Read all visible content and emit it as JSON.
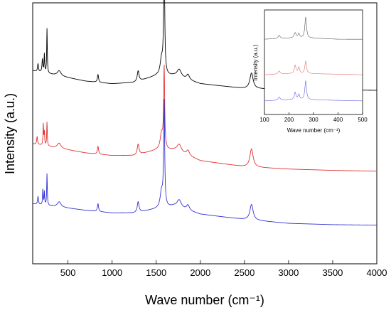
{
  "chart_data": [
    {
      "type": "line",
      "xlabel": "Wave number (cm⁻¹)",
      "ylabel": "Intensity (a.u.)",
      "xlim": [
        100,
        4000
      ],
      "ylim": [
        0,
        1
      ],
      "x_ticks": [
        500,
        1000,
        1500,
        2000,
        2500,
        3000,
        3500,
        4000
      ],
      "y_ticks_shown": false,
      "grid": false,
      "legend": "none",
      "series": [
        {
          "color": "#000000",
          "baseline": [
            [
              100,
              0.74
            ],
            [
              700,
              0.7
            ],
            [
              1000,
              0.69
            ],
            [
              1250,
              0.695
            ],
            [
              1500,
              0.72
            ],
            [
              1700,
              0.72
            ],
            [
              2000,
              0.69
            ],
            [
              2500,
              0.672
            ],
            [
              3000,
              0.668
            ],
            [
              3500,
              0.666
            ],
            [
              4000,
              0.665
            ]
          ],
          "peaks": [
            {
              "x": 160,
              "h": 0.03,
              "w": 6
            },
            {
              "x": 210,
              "h": 0.05,
              "w": 6
            },
            {
              "x": 232,
              "h": 0.07,
              "w": 4
            },
            {
              "x": 262,
              "h": 0.17,
              "w": 4
            },
            {
              "x": 400,
              "h": 0.02,
              "w": 25
            },
            {
              "x": 840,
              "h": 0.03,
              "w": 8
            },
            {
              "x": 1295,
              "h": 0.04,
              "w": 12
            },
            {
              "x": 1560,
              "h": 0.06,
              "w": 18
            },
            {
              "x": 1590,
              "h": 0.47,
              "w": 7
            },
            {
              "x": 1760,
              "h": 0.03,
              "w": 30
            },
            {
              "x": 1860,
              "h": 0.02,
              "w": 20
            },
            {
              "x": 2580,
              "h": 0.06,
              "w": 22
            }
          ]
        },
        {
          "color": "#e03030",
          "baseline": [
            [
              100,
              0.46
            ],
            [
              700,
              0.425
            ],
            [
              1000,
              0.415
            ],
            [
              1250,
              0.415
            ],
            [
              1500,
              0.435
            ],
            [
              1700,
              0.435
            ],
            [
              2000,
              0.395
            ],
            [
              2500,
              0.372
            ],
            [
              3000,
              0.363
            ],
            [
              3500,
              0.358
            ],
            [
              4000,
              0.355
            ]
          ],
          "peaks": [
            {
              "x": 150,
              "h": 0.03,
              "w": 6
            },
            {
              "x": 220,
              "h": 0.08,
              "w": 4
            },
            {
              "x": 232,
              "h": 0.05,
              "w": 4
            },
            {
              "x": 262,
              "h": 0.09,
              "w": 4
            },
            {
              "x": 400,
              "h": 0.02,
              "w": 25
            },
            {
              "x": 840,
              "h": 0.03,
              "w": 8
            },
            {
              "x": 1295,
              "h": 0.04,
              "w": 12
            },
            {
              "x": 1560,
              "h": 0.06,
              "w": 18
            },
            {
              "x": 1590,
              "h": 0.31,
              "w": 7
            },
            {
              "x": 1760,
              "h": 0.03,
              "w": 30
            },
            {
              "x": 1860,
              "h": 0.02,
              "w": 20
            },
            {
              "x": 2580,
              "h": 0.07,
              "w": 22
            }
          ]
        },
        {
          "color": "#3030d0",
          "baseline": [
            [
              100,
              0.23
            ],
            [
              700,
              0.205
            ],
            [
              1000,
              0.195
            ],
            [
              1250,
              0.195
            ],
            [
              1500,
              0.21
            ],
            [
              1700,
              0.22
            ],
            [
              2000,
              0.19
            ],
            [
              2500,
              0.17
            ],
            [
              3000,
              0.155
            ],
            [
              3500,
              0.15
            ],
            [
              4000,
              0.148
            ]
          ],
          "peaks": [
            {
              "x": 160,
              "h": 0.03,
              "w": 6
            },
            {
              "x": 215,
              "h": 0.06,
              "w": 4
            },
            {
              "x": 232,
              "h": 0.05,
              "w": 4
            },
            {
              "x": 262,
              "h": 0.12,
              "w": 4
            },
            {
              "x": 400,
              "h": 0.02,
              "w": 25
            },
            {
              "x": 840,
              "h": 0.03,
              "w": 8
            },
            {
              "x": 1295,
              "h": 0.04,
              "w": 12
            },
            {
              "x": 1560,
              "h": 0.06,
              "w": 18
            },
            {
              "x": 1590,
              "h": 0.4,
              "w": 7
            },
            {
              "x": 1760,
              "h": 0.03,
              "w": 30
            },
            {
              "x": 1860,
              "h": 0.02,
              "w": 20
            },
            {
              "x": 2580,
              "h": 0.06,
              "w": 22
            }
          ]
        }
      ]
    },
    {
      "type": "line",
      "placement": "inset-top-right",
      "xlabel": "Wave number (cm⁻¹)",
      "ylabel": "Intensity (a.u.)",
      "xlim": [
        100,
        500
      ],
      "ylim": [
        0,
        1
      ],
      "x_ticks": [
        100,
        200,
        300,
        400,
        500
      ],
      "grid": false,
      "series": [
        {
          "color": "#555555",
          "baseline": [
            [
              100,
              0.72
            ],
            [
              200,
              0.73
            ],
            [
              300,
              0.73
            ],
            [
              400,
              0.72
            ],
            [
              500,
              0.72
            ]
          ],
          "peaks": [
            {
              "x": 160,
              "h": 0.03,
              "w": 5
            },
            {
              "x": 225,
              "h": 0.05,
              "w": 5
            },
            {
              "x": 240,
              "h": 0.04,
              "w": 4
            },
            {
              "x": 268,
              "h": 0.2,
              "w": 4
            }
          ]
        },
        {
          "color": "#e07070",
          "baseline": [
            [
              100,
              0.38
            ],
            [
              200,
              0.39
            ],
            [
              300,
              0.39
            ],
            [
              400,
              0.385
            ],
            [
              500,
              0.38
            ]
          ],
          "peaks": [
            {
              "x": 160,
              "h": 0.03,
              "w": 5
            },
            {
              "x": 225,
              "h": 0.08,
              "w": 4
            },
            {
              "x": 240,
              "h": 0.06,
              "w": 4
            },
            {
              "x": 268,
              "h": 0.12,
              "w": 4
            }
          ]
        },
        {
          "color": "#6060e0",
          "baseline": [
            [
              100,
              0.13
            ],
            [
              200,
              0.14
            ],
            [
              300,
              0.14
            ],
            [
              400,
              0.135
            ],
            [
              500,
              0.13
            ]
          ],
          "peaks": [
            {
              "x": 160,
              "h": 0.03,
              "w": 5
            },
            {
              "x": 225,
              "h": 0.07,
              "w": 4
            },
            {
              "x": 240,
              "h": 0.05,
              "w": 4
            },
            {
              "x": 268,
              "h": 0.18,
              "w": 4
            }
          ]
        }
      ]
    }
  ]
}
